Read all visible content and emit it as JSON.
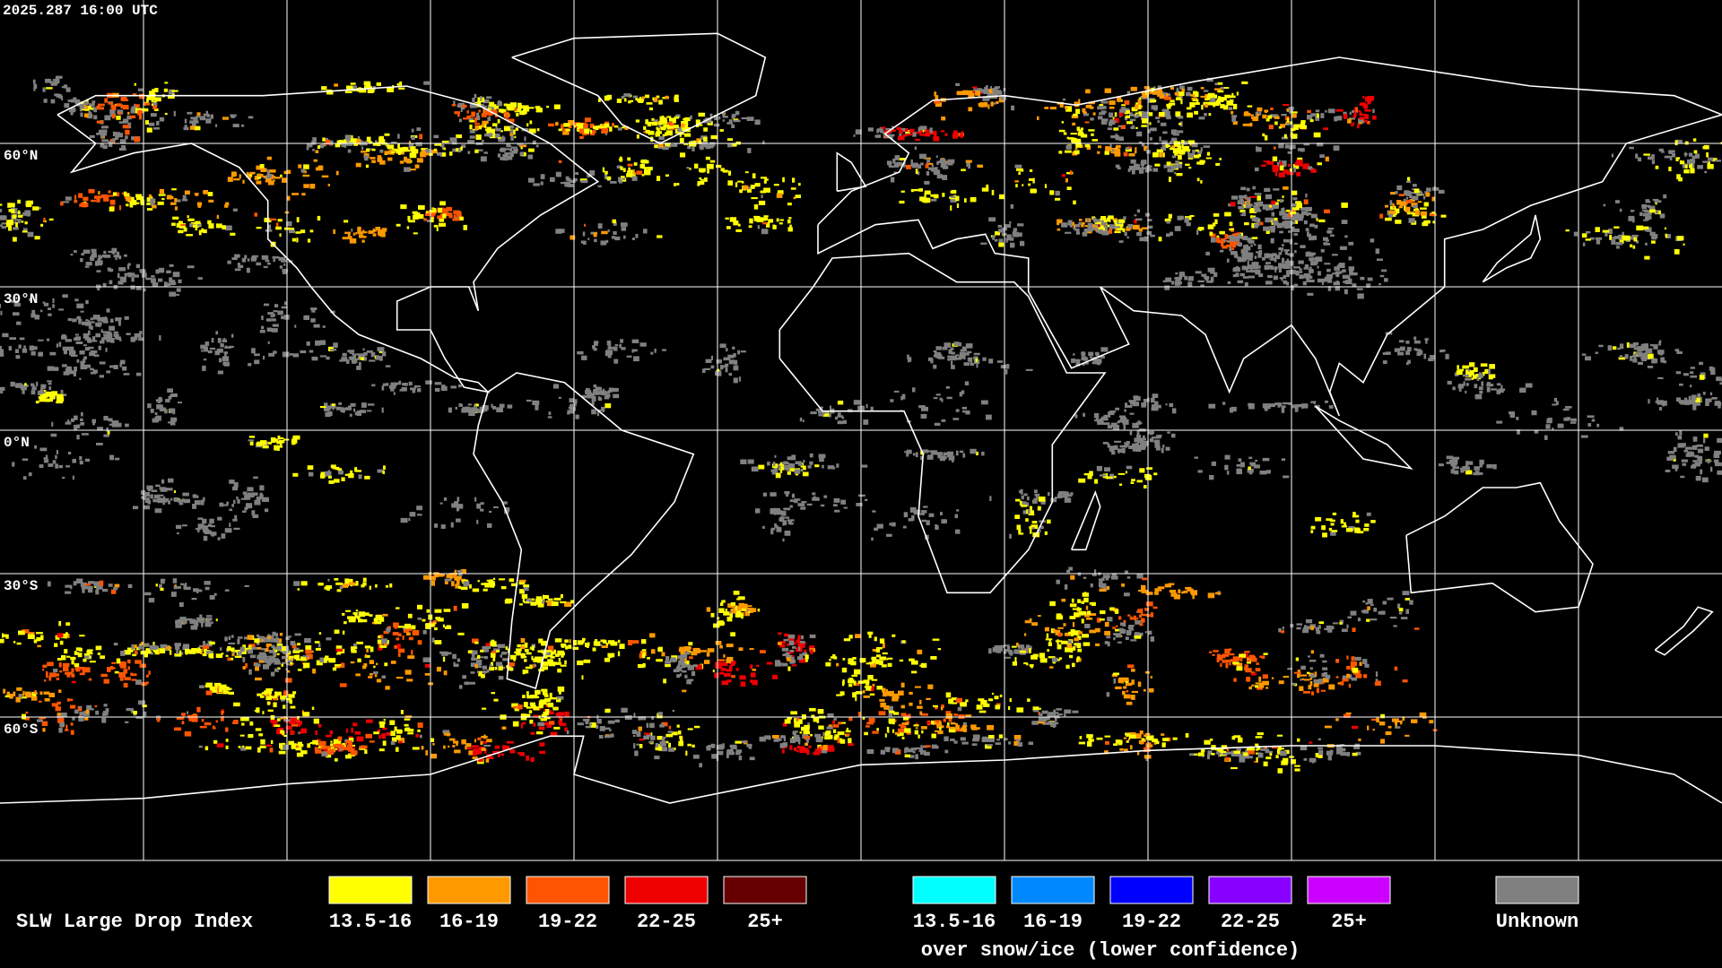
{
  "timestamp": "2025.287 16:00 UTC",
  "latitude_labels": [
    "60°N",
    "30°N",
    "0°N",
    "30°S",
    "60°S"
  ],
  "legend": {
    "title": "SLW Large Drop Index",
    "items": [
      {
        "label": "13.5-16",
        "color": "#ffff00"
      },
      {
        "label": "16-19",
        "color": "#ff9900"
      },
      {
        "label": "19-22",
        "color": "#ff5500"
      },
      {
        "label": "22-25",
        "color": "#ee0000"
      },
      {
        "label": "25+",
        "color": "#660000"
      }
    ],
    "snow_items": [
      {
        "label": "13.5-16",
        "color": "#00ffff"
      },
      {
        "label": "16-19",
        "color": "#0088ff"
      },
      {
        "label": "19-22",
        "color": "#0000ff"
      },
      {
        "label": "22-25",
        "color": "#8800ff"
      },
      {
        "label": "25+",
        "color": "#cc00ff"
      }
    ],
    "snow_caption": "over snow/ice (lower confidence)",
    "unknown": {
      "label": "Unknown",
      "color": "#808080"
    }
  }
}
